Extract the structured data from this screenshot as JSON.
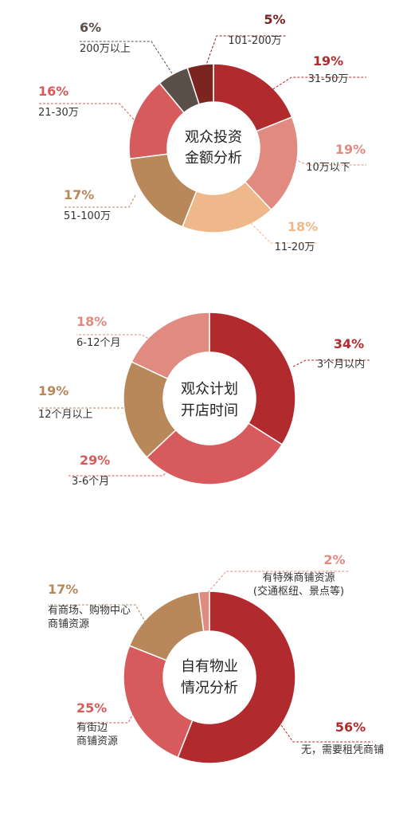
{
  "chart_data": [
    {
      "type": "pie",
      "title": "观众投资金额分析",
      "title_lines": [
        "观众投资",
        "金额分析"
      ],
      "categories": [
        "31-50万",
        "10万以下",
        "11-20万",
        "51-100万",
        "21-30万",
        "200万以上",
        "101-200万"
      ],
      "values": [
        19,
        19,
        18,
        17,
        16,
        6,
        5
      ],
      "value_labels": [
        "19%",
        "19%",
        "18%",
        "17%",
        "16%",
        "6%",
        "5%"
      ],
      "colors": [
        "#b02a2e",
        "#e08a80",
        "#efb88a",
        "#b8875a",
        "#d75a5d",
        "#5a4e49",
        "#7b2420"
      ]
    },
    {
      "type": "pie",
      "title": "观众计划开店时间",
      "title_lines": [
        "观众计划",
        "开店时间"
      ],
      "categories": [
        "3个月以内",
        "3-6个月",
        "12个月以上",
        "6-12个月"
      ],
      "values": [
        34,
        29,
        19,
        18
      ],
      "value_labels": [
        "34%",
        "29%",
        "19%",
        "18%"
      ],
      "colors": [
        "#b02a2e",
        "#d75a5d",
        "#b8875a",
        "#e08a80"
      ]
    },
    {
      "type": "pie",
      "title": "自有物业情况分析",
      "title_lines": [
        "自有物业",
        "情况分析"
      ],
      "categories": [
        "无，需要租凭商铺",
        "有街边商铺资源",
        "有商场、购物中心商铺资源",
        "有特殊商铺资源(交通枢纽、景点等)"
      ],
      "label_lines": [
        [
          "无，需要租凭商铺"
        ],
        [
          "有街边",
          "商铺资源"
        ],
        [
          "有商场、购物中心",
          "商铺资源"
        ],
        [
          "有特殊商铺资源",
          "(交通枢纽、景点等)"
        ]
      ],
      "values": [
        56,
        25,
        17,
        2
      ],
      "value_labels": [
        "56%",
        "25%",
        "17%",
        "2%"
      ],
      "colors": [
        "#b02a2e",
        "#d75a5d",
        "#b8875a",
        "#e08a80"
      ]
    }
  ]
}
